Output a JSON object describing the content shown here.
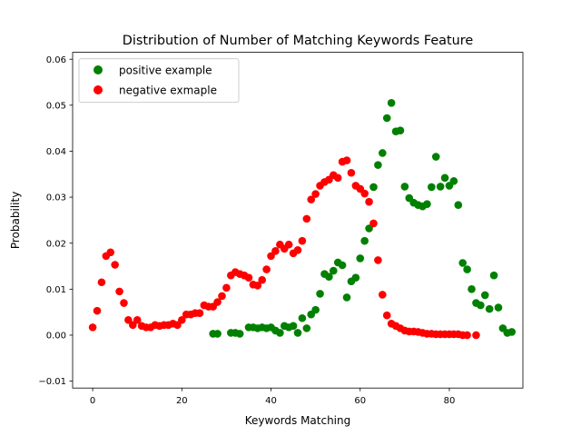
{
  "chart_data": {
    "type": "scatter",
    "title": "Distribution of Number of Matching Keywords Feature",
    "xlabel": "Keywords Matching",
    "ylabel": "Probability",
    "xlim": [
      -4.5,
      96.5
    ],
    "ylim": [
      -0.0115,
      0.0615
    ],
    "x_ticks": [
      0,
      20,
      40,
      60,
      80
    ],
    "x_tick_labels": [
      "0",
      "20",
      "40",
      "60",
      "80"
    ],
    "y_ticks": [
      -0.01,
      0.0,
      0.01,
      0.02,
      0.03,
      0.04,
      0.05,
      0.06
    ],
    "y_tick_labels": [
      "−0.01",
      "0.00",
      "0.01",
      "0.02",
      "0.03",
      "0.04",
      "0.05",
      "0.06"
    ],
    "grid": false,
    "legend_position": "top-left",
    "series": [
      {
        "name": "positive example",
        "color": "#008000",
        "points": [
          [
            27,
            0.0003
          ],
          [
            28,
            0.0003
          ],
          [
            31,
            0.0005
          ],
          [
            32,
            0.0005
          ],
          [
            33,
            0.0003
          ],
          [
            35,
            0.0017
          ],
          [
            36,
            0.0017
          ],
          [
            37,
            0.0015
          ],
          [
            38,
            0.0017
          ],
          [
            39,
            0.0015
          ],
          [
            40,
            0.0017
          ],
          [
            41,
            0.001
          ],
          [
            42,
            0.0005
          ],
          [
            43,
            0.002
          ],
          [
            44,
            0.0017
          ],
          [
            45,
            0.002
          ],
          [
            46,
            0.0005
          ],
          [
            47,
            0.0037
          ],
          [
            48,
            0.0015
          ],
          [
            49,
            0.0045
          ],
          [
            50,
            0.0055
          ],
          [
            51,
            0.009
          ],
          [
            52,
            0.0133
          ],
          [
            53,
            0.0127
          ],
          [
            54,
            0.014
          ],
          [
            55,
            0.0158
          ],
          [
            56,
            0.0152
          ],
          [
            57,
            0.0082
          ],
          [
            58,
            0.0117
          ],
          [
            59,
            0.0125
          ],
          [
            60,
            0.0167
          ],
          [
            61,
            0.0205
          ],
          [
            62,
            0.0232
          ],
          [
            63,
            0.0322
          ],
          [
            64,
            0.037
          ],
          [
            65,
            0.0396
          ],
          [
            66,
            0.0472
          ],
          [
            67,
            0.0505
          ],
          [
            68,
            0.0443
          ],
          [
            69,
            0.0445
          ],
          [
            70,
            0.0323
          ],
          [
            71,
            0.0298
          ],
          [
            72,
            0.0288
          ],
          [
            73,
            0.0283
          ],
          [
            74,
            0.028
          ],
          [
            75,
            0.0285
          ],
          [
            76,
            0.0322
          ],
          [
            77,
            0.0388
          ],
          [
            78,
            0.0323
          ],
          [
            79,
            0.0342
          ],
          [
            80,
            0.0325
          ],
          [
            81,
            0.0335
          ],
          [
            82,
            0.0283
          ],
          [
            83,
            0.0157
          ],
          [
            84,
            0.0143
          ],
          [
            85,
            0.01
          ],
          [
            86,
            0.007
          ],
          [
            87,
            0.0065
          ],
          [
            88,
            0.0087
          ],
          [
            89,
            0.0057
          ],
          [
            90,
            0.013
          ],
          [
            91,
            0.006
          ],
          [
            92,
            0.0015
          ],
          [
            93,
            0.0005
          ],
          [
            94,
            0.0007
          ]
        ]
      },
      {
        "name": "negative exmaple",
        "color": "#ff0000",
        "points": [
          [
            0,
            0.0017
          ],
          [
            1,
            0.0053
          ],
          [
            2,
            0.0115
          ],
          [
            3,
            0.0172
          ],
          [
            4,
            0.018
          ],
          [
            5,
            0.0153
          ],
          [
            6,
            0.0095
          ],
          [
            7,
            0.007
          ],
          [
            8,
            0.0033
          ],
          [
            9,
            0.0022
          ],
          [
            10,
            0.0033
          ],
          [
            11,
            0.002
          ],
          [
            12,
            0.0017
          ],
          [
            13,
            0.0017
          ],
          [
            14,
            0.0022
          ],
          [
            15,
            0.002
          ],
          [
            16,
            0.0022
          ],
          [
            17,
            0.0022
          ],
          [
            18,
            0.0025
          ],
          [
            19,
            0.0022
          ],
          [
            20,
            0.0033
          ],
          [
            21,
            0.0045
          ],
          [
            22,
            0.0045
          ],
          [
            23,
            0.0048
          ],
          [
            24,
            0.0048
          ],
          [
            25,
            0.0065
          ],
          [
            26,
            0.0062
          ],
          [
            27,
            0.0062
          ],
          [
            28,
            0.0072
          ],
          [
            29,
            0.0085
          ],
          [
            30,
            0.0103
          ],
          [
            31,
            0.013
          ],
          [
            32,
            0.0137
          ],
          [
            33,
            0.0133
          ],
          [
            34,
            0.013
          ],
          [
            35,
            0.0125
          ],
          [
            36,
            0.011
          ],
          [
            37,
            0.0108
          ],
          [
            38,
            0.012
          ],
          [
            39,
            0.0143
          ],
          [
            40,
            0.0172
          ],
          [
            41,
            0.0183
          ],
          [
            42,
            0.0197
          ],
          [
            43,
            0.0188
          ],
          [
            44,
            0.0197
          ],
          [
            45,
            0.0178
          ],
          [
            46,
            0.0185
          ],
          [
            47,
            0.0205
          ],
          [
            48,
            0.0253
          ],
          [
            49,
            0.0295
          ],
          [
            50,
            0.0307
          ],
          [
            51,
            0.0325
          ],
          [
            52,
            0.0333
          ],
          [
            53,
            0.0338
          ],
          [
            54,
            0.0348
          ],
          [
            55,
            0.0342
          ],
          [
            56,
            0.0377
          ],
          [
            57,
            0.038
          ],
          [
            58,
            0.0353
          ],
          [
            59,
            0.0325
          ],
          [
            60,
            0.0318
          ],
          [
            61,
            0.0308
          ],
          [
            62,
            0.029
          ],
          [
            63,
            0.0243
          ],
          [
            64,
            0.0163
          ],
          [
            65,
            0.0088
          ],
          [
            66,
            0.0043
          ],
          [
            67,
            0.0025
          ],
          [
            68,
            0.002
          ],
          [
            69,
            0.0015
          ],
          [
            70,
            0.001
          ],
          [
            71,
            0.0008
          ],
          [
            72,
            0.0008
          ],
          [
            73,
            0.0007
          ],
          [
            74,
            0.0005
          ],
          [
            75,
            0.0003
          ],
          [
            76,
            0.0003
          ],
          [
            77,
            0.0002
          ],
          [
            78,
            0.0002
          ],
          [
            79,
            0.0002
          ],
          [
            80,
            0.0002
          ],
          [
            81,
            0.0002
          ],
          [
            82,
            0.0002
          ],
          [
            83,
            0.0
          ],
          [
            84,
            0.0
          ],
          [
            86,
            0.0
          ]
        ]
      }
    ]
  }
}
